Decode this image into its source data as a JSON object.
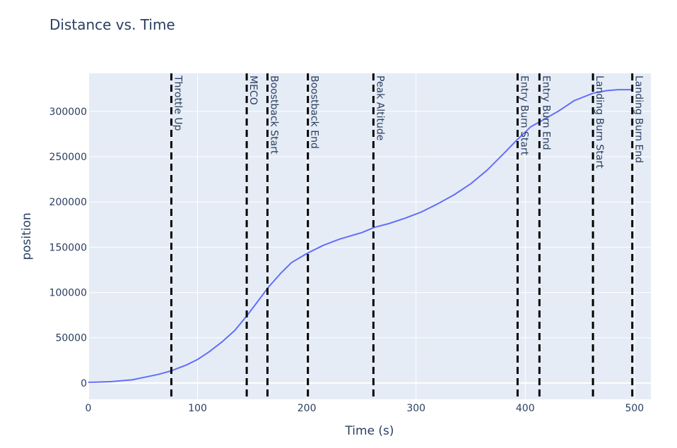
{
  "chart_data": {
    "type": "line",
    "title": "Distance vs. Time",
    "xlabel": "Time (s)",
    "ylabel": "position",
    "xlim": [
      0,
      515
    ],
    "ylim": [
      -18000,
      342000
    ],
    "x_ticks": [
      0,
      100,
      200,
      300,
      400,
      500
    ],
    "y_ticks": [
      0,
      50000,
      100000,
      150000,
      200000,
      250000,
      300000
    ],
    "grid": true,
    "colors": {
      "plot_bg": "#e5ecf6",
      "grid": "#ffffff",
      "line": "#636efa",
      "event_line": "#000000",
      "text": "#2a3f5f"
    },
    "series": [
      {
        "x": [
          0,
          20,
          40,
          50,
          64,
          76,
          90,
          100,
          110,
          122,
          134,
          145,
          155,
          165,
          176,
          186,
          200,
          215,
          230,
          250,
          262,
          275,
          290,
          305,
          320,
          335,
          350,
          365,
          380,
          392,
          405,
          414,
          430,
          445,
          462,
          475,
          485,
          498
        ],
        "y": [
          800,
          1500,
          3500,
          6000,
          9500,
          13500,
          20000,
          26000,
          34000,
          45000,
          58000,
          74000,
          90000,
          106000,
          121000,
          133000,
          143000,
          152000,
          159000,
          166000,
          172000,
          176000,
          182000,
          189000,
          198000,
          208000,
          220000,
          235000,
          253000,
          268000,
          283000,
          289000,
          300000,
          312000,
          320000,
          323000,
          324000,
          324000
        ]
      }
    ],
    "events": [
      {
        "label": "Throttle Up",
        "x": 76
      },
      {
        "label": "MECO",
        "x": 145
      },
      {
        "label": "Boostback Start",
        "x": 164
      },
      {
        "label": "Boostback End",
        "x": 201
      },
      {
        "label": "Peak Altitude",
        "x": 261
      },
      {
        "label": "Entry Burn Start",
        "x": 393
      },
      {
        "label": "Entry Burn End",
        "x": 413
      },
      {
        "label": "Landing Burn Start",
        "x": 462
      },
      {
        "label": "Landing Burn End",
        "x": 498
      }
    ]
  }
}
